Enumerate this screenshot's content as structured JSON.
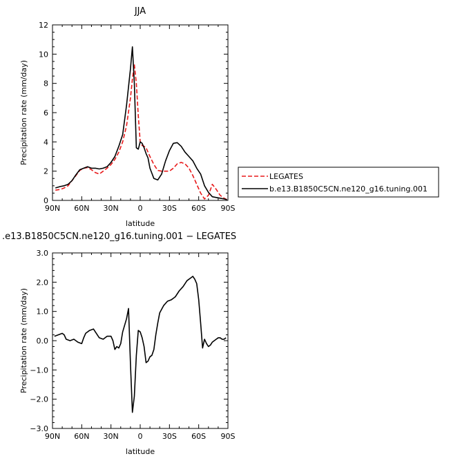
{
  "chart_data": [
    {
      "type": "line",
      "title": "JJA",
      "xlabel": "latitude",
      "ylabel": "Precipitation rate (mm/day)",
      "xlim": [
        90,
        -90
      ],
      "ylim": [
        0,
        12
      ],
      "x_tick_labels": [
        "90N",
        "60N",
        "30N",
        "0",
        "30S",
        "60S",
        "90S"
      ],
      "y_tick_labels": [
        "0",
        "2",
        "4",
        "6",
        "8",
        "10",
        "12"
      ],
      "legend_position": "right",
      "series": [
        {
          "name": "LEGATES",
          "color": "#e8191a",
          "dash": true,
          "x": [
            87,
            82,
            78,
            74,
            70,
            66,
            62,
            58,
            54,
            50,
            46,
            42,
            38,
            34,
            30,
            26,
            22,
            18,
            14,
            10,
            8,
            6,
            4,
            2,
            0,
            -2,
            -4,
            -6,
            -8,
            -10,
            -14,
            -18,
            -22,
            -26,
            -30,
            -34,
            -38,
            -42,
            -46,
            -50,
            -54,
            -58,
            -62,
            -66,
            -70,
            -74,
            -78,
            -82,
            -86,
            -89
          ],
          "y": [
            0.7,
            0.75,
            0.85,
            1.0,
            1.35,
            1.7,
            2.05,
            2.2,
            2.25,
            2.1,
            1.9,
            1.8,
            2.0,
            2.2,
            2.45,
            2.8,
            3.3,
            4.0,
            5.1,
            7.0,
            8.3,
            9.3,
            8.0,
            5.8,
            4.0,
            3.75,
            3.7,
            3.6,
            3.3,
            3.0,
            2.45,
            2.05,
            2.0,
            2.0,
            2.0,
            2.2,
            2.5,
            2.6,
            2.5,
            2.2,
            1.7,
            1.1,
            0.5,
            0.1,
            0.35,
            1.1,
            0.75,
            0.35,
            0.15,
            0.05
          ]
        },
        {
          "name": "b.e13.B1850C5CN.ne120_g16.tuning.001",
          "color": "#000000",
          "dash": false,
          "x": [
            87,
            82,
            78,
            74,
            70,
            66,
            62,
            58,
            54,
            50,
            46,
            42,
            38,
            34,
            30,
            26,
            22,
            18,
            14,
            10,
            8,
            6,
            4,
            2,
            0,
            -2,
            -4,
            -6,
            -8,
            -10,
            -14,
            -18,
            -22,
            -26,
            -30,
            -34,
            -38,
            -42,
            -46,
            -50,
            -54,
            -58,
            -62,
            -66,
            -70,
            -74,
            -78,
            -82,
            -86,
            -89
          ],
          "y": [
            0.85,
            0.95,
            1.0,
            1.1,
            1.35,
            1.75,
            2.1,
            2.2,
            2.3,
            2.2,
            2.2,
            2.15,
            2.2,
            2.3,
            2.6,
            3.0,
            3.7,
            4.5,
            6.5,
            9.0,
            10.5,
            8.0,
            3.6,
            3.5,
            4.0,
            3.9,
            3.6,
            3.2,
            2.9,
            2.2,
            1.5,
            1.4,
            1.8,
            2.7,
            3.4,
            3.9,
            3.95,
            3.7,
            3.3,
            3.0,
            2.7,
            2.2,
            1.8,
            1.0,
            0.55,
            0.25,
            0.2,
            0.15,
            0.1,
            0.05
          ]
        }
      ]
    },
    {
      "type": "line",
      "title": ".e13.B1850C5CN.ne120_g16.tuning.001 − LEGATES",
      "xlabel": "latitude",
      "ylabel": "Precipitation rate (mm/day)",
      "xlim": [
        90,
        -90
      ],
      "ylim": [
        -3,
        3
      ],
      "x_tick_labels": [
        "90N",
        "60N",
        "30N",
        "0",
        "30S",
        "60S",
        "90S"
      ],
      "y_tick_labels": [
        "−3.0",
        "−2.0",
        "−1.0",
        "0.0",
        "1.0",
        "2.0",
        "3.0"
      ],
      "series": [
        {
          "color": "#000000",
          "dash": false,
          "x": [
            88,
            84,
            80,
            78,
            76,
            72,
            68,
            64,
            60,
            58,
            56,
            52,
            48,
            46,
            42,
            38,
            34,
            30,
            28,
            26,
            24,
            22,
            20,
            18,
            14,
            12,
            10,
            8,
            6,
            4,
            2,
            0,
            -2,
            -4,
            -6,
            -8,
            -10,
            -12,
            -14,
            -16,
            -18,
            -20,
            -24,
            -28,
            -32,
            -34,
            -36,
            -40,
            -44,
            -48,
            -52,
            -54,
            -56,
            -58,
            -60,
            -62,
            -64,
            -66,
            -68,
            -70,
            -72,
            -74,
            -76,
            -78,
            -80,
            -82,
            -84,
            -86,
            -88
          ],
          "y": [
            0.15,
            0.2,
            0.25,
            0.2,
            0.05,
            0.0,
            0.05,
            -0.05,
            -0.1,
            0.1,
            0.25,
            0.35,
            0.4,
            0.3,
            0.1,
            0.05,
            0.15,
            0.15,
            0.0,
            -0.3,
            -0.2,
            -0.25,
            -0.1,
            0.3,
            0.75,
            1.1,
            -0.8,
            -2.45,
            -1.9,
            -0.5,
            0.35,
            0.3,
            0.1,
            -0.2,
            -0.75,
            -0.7,
            -0.55,
            -0.5,
            -0.3,
            0.2,
            0.6,
            0.95,
            1.2,
            1.35,
            1.4,
            1.45,
            1.5,
            1.7,
            1.85,
            2.05,
            2.15,
            2.2,
            2.1,
            1.95,
            1.4,
            0.6,
            -0.25,
            0.05,
            -0.1,
            -0.2,
            -0.15,
            -0.05,
            0.0,
            0.05,
            0.1,
            0.1,
            0.05,
            0.05,
            0.1
          ]
        }
      ]
    }
  ]
}
